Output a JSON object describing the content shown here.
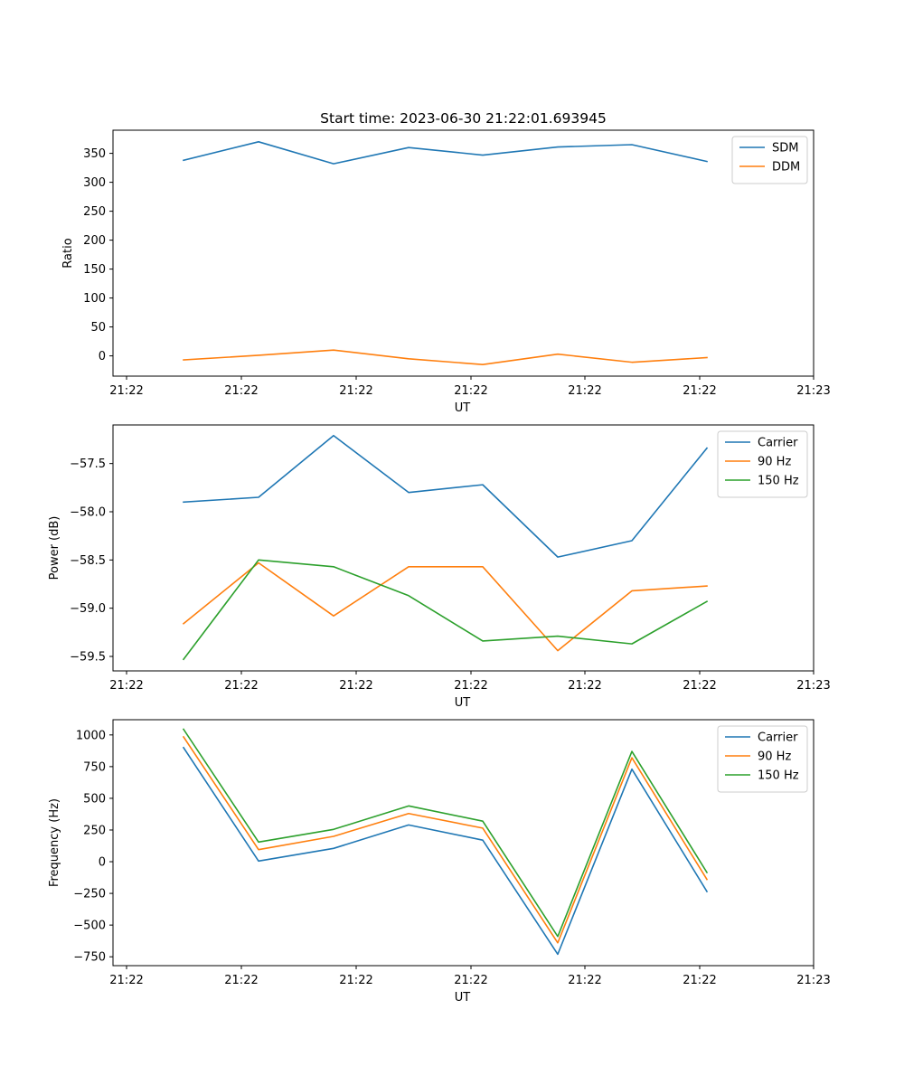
{
  "chart_data": [
    {
      "type": "line",
      "title": "Start time: 2023-06-30 21:22:01.693945",
      "xlabel": "UT",
      "ylabel": "Ratio",
      "x": [
        1,
        2,
        3,
        4,
        5,
        6,
        7,
        8
      ],
      "x_tick_labels": [
        "21:22",
        "21:22",
        "21:22",
        "21:22",
        "21:22",
        "21:22",
        "21:22",
        "21:23"
      ],
      "y_ticks": [
        0,
        50,
        100,
        150,
        200,
        250,
        300,
        350
      ],
      "y_tick_labels": [
        "0",
        "50",
        "100",
        "150",
        "200",
        "250",
        "300",
        "350"
      ],
      "ylim": [
        -35,
        390
      ],
      "legend": "top-right",
      "grid": false,
      "series": [
        {
          "name": "SDM",
          "color": "#1f77b4",
          "values": [
            338,
            370,
            332,
            360,
            347,
            361,
            365,
            336
          ]
        },
        {
          "name": "DDM",
          "color": "#ff7f0e",
          "values": [
            -7,
            1,
            10,
            -5,
            -15,
            3,
            -11,
            -3
          ]
        }
      ]
    },
    {
      "type": "line",
      "title": "",
      "xlabel": "UT",
      "ylabel": "Power (dB)",
      "x": [
        1,
        2,
        3,
        4,
        5,
        6,
        7,
        8
      ],
      "x_tick_labels": [
        "21:22",
        "21:22",
        "21:22",
        "21:22",
        "21:22",
        "21:22",
        "21:22",
        "21:23"
      ],
      "y_ticks": [
        -59.5,
        -59.0,
        -58.5,
        -58.0,
        -57.5
      ],
      "y_tick_labels": [
        "−59.5",
        "−59.0",
        "−58.5",
        "−58.0",
        "−57.5"
      ],
      "ylim": [
        -59.65,
        -57.1
      ],
      "legend": "top-right",
      "grid": false,
      "series": [
        {
          "name": "Carrier",
          "color": "#1f77b4",
          "values": [
            -57.9,
            -57.85,
            -57.21,
            -57.8,
            -57.72,
            -58.47,
            -58.3,
            -57.34
          ]
        },
        {
          "name": "90 Hz",
          "color": "#ff7f0e",
          "values": [
            -59.16,
            -58.53,
            -59.08,
            -58.57,
            -58.57,
            -59.44,
            -58.82,
            -58.77
          ]
        },
        {
          "name": "150 Hz",
          "color": "#2ca02c",
          "values": [
            -59.53,
            -58.5,
            -58.57,
            -58.87,
            -59.34,
            -59.29,
            -59.37,
            -58.93
          ]
        }
      ]
    },
    {
      "type": "line",
      "title": "",
      "xlabel": "UT",
      "ylabel": "Frequency (Hz)",
      "x": [
        1,
        2,
        3,
        4,
        5,
        6,
        7,
        8
      ],
      "x_tick_labels": [
        "21:22",
        "21:22",
        "21:22",
        "21:22",
        "21:22",
        "21:22",
        "21:22",
        "21:23"
      ],
      "y_ticks": [
        -750,
        -500,
        -250,
        0,
        250,
        500,
        750,
        1000
      ],
      "y_tick_labels": [
        "−750",
        "−500",
        "−250",
        "0",
        "250",
        "500",
        "750",
        "1000"
      ],
      "ylim": [
        -820,
        1120
      ],
      "legend": "top-right",
      "grid": false,
      "series": [
        {
          "name": "Carrier",
          "color": "#1f77b4",
          "values": [
            900,
            5,
            105,
            290,
            170,
            -730,
            730,
            -235
          ]
        },
        {
          "name": "90 Hz",
          "color": "#ff7f0e",
          "values": [
            985,
            95,
            200,
            380,
            265,
            -640,
            820,
            -140
          ]
        },
        {
          "name": "150 Hz",
          "color": "#2ca02c",
          "values": [
            1045,
            155,
            255,
            440,
            320,
            -590,
            870,
            -85
          ]
        }
      ]
    }
  ]
}
